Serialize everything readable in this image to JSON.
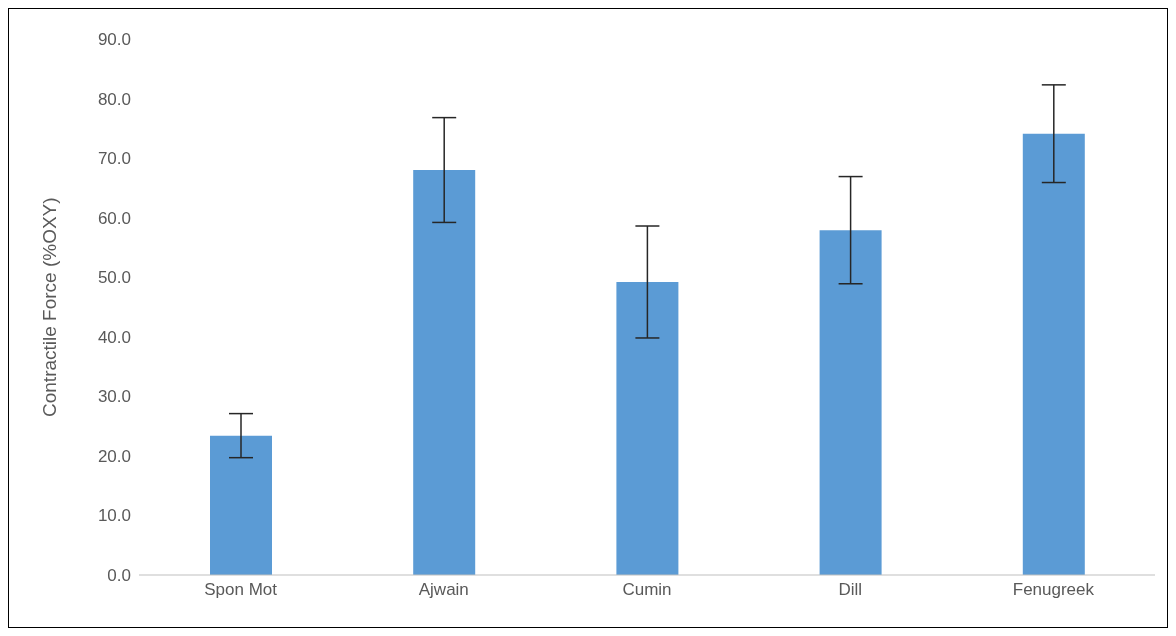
{
  "chart_data": {
    "type": "bar",
    "ylabel": "Contractile Force (%OXY)",
    "categories": [
      "Spon Mot",
      "Ajwain",
      "Cumin",
      "Dill",
      "Fenugreek"
    ],
    "values": [
      23.4,
      68.0,
      49.2,
      57.9,
      74.1
    ],
    "errors": [
      3.7,
      8.8,
      9.4,
      9.0,
      8.2
    ],
    "color": "#5b9bd5",
    "ylim": [
      0,
      90
    ],
    "yticks": [
      {
        "value": 0,
        "label": "0.0"
      },
      {
        "value": 10,
        "label": "10.0"
      },
      {
        "value": 20,
        "label": "20.0"
      },
      {
        "value": 30,
        "label": "30.0"
      },
      {
        "value": 40,
        "label": "40.0"
      },
      {
        "value": 50,
        "label": "50.0"
      },
      {
        "value": 60,
        "label": "60.0"
      },
      {
        "value": 70,
        "label": "70.0"
      },
      {
        "value": 80,
        "label": "80.0"
      },
      {
        "value": 90,
        "label": "90.0"
      }
    ],
    "grid": false,
    "legend": false
  }
}
